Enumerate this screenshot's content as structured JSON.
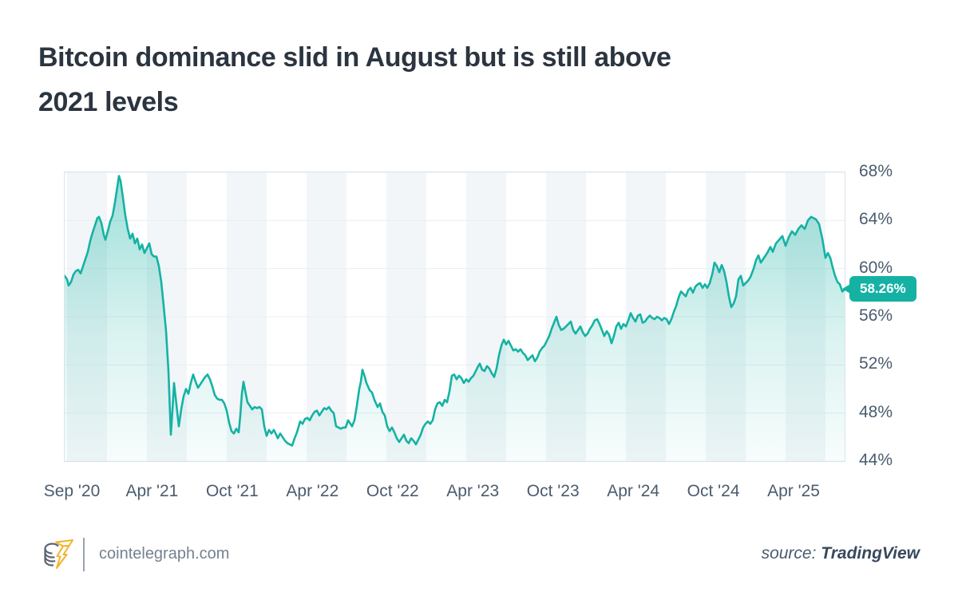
{
  "title": {
    "lines": [
      "Bitcoin dominance slid in August but is still above",
      "2021 levels"
    ]
  },
  "badge": {
    "text": "58.26%"
  },
  "footer": {
    "site": "cointelegraph.com",
    "source_prefix": "source:",
    "source_name": "TradingView",
    "logo_colors": {
      "coin": "#5b6470",
      "bolt": "#f3b229"
    }
  },
  "chart_data": {
    "type": "area",
    "title": "Bitcoin dominance slid in August but is still above 2021 levels",
    "unit": "%",
    "ylim": [
      44,
      68
    ],
    "y_ticks": [
      "68%",
      "64%",
      "60%",
      "56%",
      "52%",
      "48%",
      "44%"
    ],
    "x_ticks": [
      "Sep '20",
      "Apr '21",
      "Oct '21",
      "Apr '22",
      "Oct '22",
      "Apr '23",
      "Oct '23",
      "Apr '24",
      "Oct '24",
      "Apr '25"
    ],
    "x_range": [
      "Aug 2020",
      "Sep 2025"
    ],
    "grid": true,
    "legend": false,
    "last_value": 58.26,
    "last_value_label": "58.26%",
    "line_color": "#15b2a4",
    "fill_color": "#15b2a4",
    "stripe_color": "#f2f6f8",
    "grid_color": "#e8eef2",
    "border_color": "#d9e4ec",
    "points": [
      [
        0,
        59.4
      ],
      [
        3,
        59.1
      ],
      [
        5,
        58.6
      ],
      [
        8,
        58.9
      ],
      [
        11,
        59.5
      ],
      [
        14,
        59.8
      ],
      [
        17,
        59.9
      ],
      [
        20,
        59.6
      ],
      [
        23,
        60.2
      ],
      [
        26,
        60.8
      ],
      [
        29,
        61.4
      ],
      [
        32,
        62.3
      ],
      [
        35,
        63.0
      ],
      [
        38,
        63.6
      ],
      [
        41,
        64.2
      ],
      [
        43,
        64.3
      ],
      [
        46,
        63.8
      ],
      [
        49,
        62.8
      ],
      [
        51,
        62.4
      ],
      [
        54,
        63.1
      ],
      [
        57,
        63.9
      ],
      [
        60,
        64.4
      ],
      [
        63,
        65.5
      ],
      [
        66,
        66.8
      ],
      [
        68,
        67.7
      ],
      [
        70,
        67.3
      ],
      [
        73,
        65.9
      ],
      [
        76,
        64.4
      ],
      [
        79,
        63.3
      ],
      [
        82,
        62.5
      ],
      [
        85,
        62.9
      ],
      [
        88,
        62.1
      ],
      [
        91,
        62.5
      ],
      [
        94,
        61.6
      ],
      [
        97,
        62.0
      ],
      [
        100,
        61.3
      ],
      [
        103,
        61.7
      ],
      [
        106,
        62.1
      ],
      [
        109,
        61.2
      ],
      [
        112,
        61.0
      ],
      [
        115,
        61.0
      ],
      [
        118,
        60.2
      ],
      [
        121,
        58.9
      ],
      [
        124,
        56.9
      ],
      [
        127,
        54.8
      ],
      [
        130,
        51.5
      ],
      [
        133,
        46.2
      ],
      [
        135,
        48.2
      ],
      [
        137,
        50.5
      ],
      [
        140,
        48.7
      ],
      [
        143,
        46.9
      ],
      [
        146,
        48.3
      ],
      [
        149,
        49.4
      ],
      [
        152,
        50.0
      ],
      [
        155,
        49.6
      ],
      [
        158,
        50.5
      ],
      [
        161,
        51.2
      ],
      [
        164,
        50.6
      ],
      [
        167,
        50.1
      ],
      [
        170,
        50.4
      ],
      [
        173,
        50.7
      ],
      [
        176,
        51.0
      ],
      [
        179,
        51.2
      ],
      [
        182,
        50.8
      ],
      [
        185,
        50.2
      ],
      [
        188,
        49.5
      ],
      [
        191,
        49.2
      ],
      [
        194,
        49.1
      ],
      [
        197,
        49.1
      ],
      [
        200,
        48.8
      ],
      [
        203,
        48.2
      ],
      [
        206,
        47.2
      ],
      [
        209,
        46.5
      ],
      [
        212,
        46.3
      ],
      [
        215,
        46.7
      ],
      [
        218,
        46.4
      ],
      [
        220,
        47.8
      ],
      [
        222,
        49.6
      ],
      [
        224,
        50.6
      ],
      [
        226,
        49.9
      ],
      [
        229,
        48.9
      ],
      [
        232,
        48.6
      ],
      [
        235,
        48.3
      ],
      [
        238,
        48.5
      ],
      [
        241,
        48.4
      ],
      [
        244,
        48.5
      ],
      [
        247,
        48.3
      ],
      [
        250,
        46.9
      ],
      [
        253,
        46.1
      ],
      [
        256,
        46.6
      ],
      [
        259,
        46.3
      ],
      [
        262,
        46.6
      ],
      [
        265,
        46.2
      ],
      [
        267,
        45.9
      ],
      [
        270,
        46.3
      ],
      [
        273,
        46.0
      ],
      [
        276,
        45.7
      ],
      [
        279,
        45.5
      ],
      [
        282,
        45.4
      ],
      [
        285,
        45.3
      ],
      [
        288,
        45.9
      ],
      [
        291,
        46.4
      ],
      [
        295,
        47.3
      ],
      [
        298,
        47.1
      ],
      [
        301,
        47.5
      ],
      [
        304,
        47.6
      ],
      [
        307,
        47.4
      ],
      [
        310,
        47.8
      ],
      [
        313,
        48.1
      ],
      [
        316,
        48.2
      ],
      [
        319,
        47.8
      ],
      [
        322,
        48.1
      ],
      [
        325,
        48.4
      ],
      [
        328,
        48.3
      ],
      [
        331,
        48.5
      ],
      [
        334,
        48.2
      ],
      [
        337,
        48.0
      ],
      [
        340,
        46.9
      ],
      [
        343,
        46.8
      ],
      [
        346,
        46.7
      ],
      [
        349,
        46.8
      ],
      [
        352,
        46.8
      ],
      [
        355,
        47.4
      ],
      [
        358,
        47.1
      ],
      [
        360,
        46.9
      ],
      [
        363,
        47.4
      ],
      [
        366,
        48.6
      ],
      [
        369,
        50.0
      ],
      [
        371,
        50.6
      ],
      [
        373,
        51.6
      ],
      [
        376,
        51.0
      ],
      [
        378,
        50.5
      ],
      [
        382,
        49.9
      ],
      [
        385,
        49.7
      ],
      [
        388,
        49.1
      ],
      [
        392,
        48.5
      ],
      [
        395,
        48.8
      ],
      [
        398,
        48.1
      ],
      [
        401,
        47.8
      ],
      [
        404,
        46.9
      ],
      [
        407,
        46.5
      ],
      [
        410,
        46.8
      ],
      [
        413,
        46.4
      ],
      [
        416,
        45.9
      ],
      [
        419,
        45.6
      ],
      [
        422,
        45.9
      ],
      [
        425,
        46.2
      ],
      [
        428,
        45.7
      ],
      [
        431,
        45.5
      ],
      [
        434,
        45.9
      ],
      [
        437,
        45.7
      ],
      [
        440,
        45.4
      ],
      [
        443,
        45.8
      ],
      [
        446,
        46.2
      ],
      [
        449,
        46.8
      ],
      [
        452,
        47.1
      ],
      [
        455,
        47.3
      ],
      [
        458,
        47.1
      ],
      [
        461,
        47.4
      ],
      [
        464,
        48.3
      ],
      [
        467,
        48.8
      ],
      [
        470,
        48.9
      ],
      [
        473,
        48.6
      ],
      [
        476,
        49.1
      ],
      [
        479,
        48.9
      ],
      [
        482,
        49.8
      ],
      [
        485,
        51.1
      ],
      [
        488,
        51.2
      ],
      [
        491,
        50.8
      ],
      [
        494,
        51.1
      ],
      [
        497,
        50.9
      ],
      [
        500,
        50.5
      ],
      [
        503,
        50.8
      ],
      [
        506,
        50.6
      ],
      [
        509,
        50.9
      ],
      [
        512,
        51.1
      ],
      [
        515,
        51.5
      ],
      [
        518,
        51.9
      ],
      [
        520,
        52.1
      ],
      [
        523,
        51.6
      ],
      [
        526,
        51.5
      ],
      [
        529,
        51.9
      ],
      [
        532,
        51.7
      ],
      [
        535,
        51.3
      ],
      [
        538,
        51.0
      ],
      [
        541,
        51.7
      ],
      [
        544,
        52.8
      ],
      [
        547,
        53.6
      ],
      [
        550,
        54.1
      ],
      [
        553,
        53.7
      ],
      [
        556,
        54.0
      ],
      [
        559,
        53.6
      ],
      [
        562,
        53.2
      ],
      [
        565,
        53.3
      ],
      [
        568,
        53.1
      ],
      [
        571,
        53.3
      ],
      [
        574,
        53.0
      ],
      [
        577,
        52.8
      ],
      [
        580,
        52.4
      ],
      [
        583,
        52.6
      ],
      [
        586,
        52.8
      ],
      [
        589,
        52.3
      ],
      [
        592,
        52.6
      ],
      [
        595,
        53.1
      ],
      [
        598,
        53.4
      ],
      [
        601,
        53.6
      ],
      [
        604,
        54.0
      ],
      [
        607,
        54.4
      ],
      [
        610,
        55.0
      ],
      [
        613,
        55.5
      ],
      [
        616,
        56.0
      ],
      [
        619,
        55.3
      ],
      [
        622,
        54.9
      ],
      [
        625,
        55.0
      ],
      [
        628,
        55.2
      ],
      [
        631,
        55.4
      ],
      [
        634,
        55.6
      ],
      [
        637,
        54.9
      ],
      [
        640,
        54.6
      ],
      [
        643,
        54.9
      ],
      [
        646,
        55.2
      ],
      [
        649,
        54.7
      ],
      [
        652,
        54.4
      ],
      [
        655,
        54.6
      ],
      [
        658,
        55.0
      ],
      [
        661,
        55.3
      ],
      [
        664,
        55.7
      ],
      [
        667,
        55.8
      ],
      [
        670,
        55.4
      ],
      [
        673,
        54.9
      ],
      [
        676,
        54.4
      ],
      [
        679,
        54.8
      ],
      [
        682,
        54.5
      ],
      [
        685,
        53.8
      ],
      [
        688,
        54.4
      ],
      [
        691,
        55.2
      ],
      [
        694,
        55.5
      ],
      [
        697,
        55.0
      ],
      [
        700,
        55.4
      ],
      [
        703,
        55.2
      ],
      [
        706,
        55.7
      ],
      [
        709,
        56.3
      ],
      [
        712,
        55.9
      ],
      [
        715,
        55.6
      ],
      [
        718,
        56.1
      ],
      [
        721,
        56.2
      ],
      [
        724,
        55.5
      ],
      [
        727,
        55.6
      ],
      [
        730,
        55.9
      ],
      [
        733,
        56.1
      ],
      [
        736,
        55.9
      ],
      [
        739,
        55.8
      ],
      [
        742,
        56.0
      ],
      [
        745,
        55.9
      ],
      [
        748,
        55.7
      ],
      [
        751,
        55.9
      ],
      [
        754,
        55.8
      ],
      [
        757,
        55.4
      ],
      [
        760,
        55.8
      ],
      [
        763,
        56.4
      ],
      [
        766,
        56.9
      ],
      [
        769,
        57.6
      ],
      [
        772,
        58.1
      ],
      [
        775,
        57.9
      ],
      [
        778,
        57.7
      ],
      [
        781,
        58.2
      ],
      [
        784,
        58.4
      ],
      [
        787,
        58.0
      ],
      [
        790,
        58.5
      ],
      [
        793,
        58.7
      ],
      [
        796,
        58.8
      ],
      [
        799,
        58.4
      ],
      [
        802,
        58.7
      ],
      [
        805,
        58.4
      ],
      [
        808,
        58.8
      ],
      [
        811,
        59.5
      ],
      [
        814,
        60.5
      ],
      [
        817,
        60.2
      ],
      [
        820,
        59.7
      ],
      [
        823,
        60.3
      ],
      [
        826,
        59.8
      ],
      [
        829,
        58.9
      ],
      [
        832,
        57.7
      ],
      [
        835,
        56.8
      ],
      [
        838,
        57.1
      ],
      [
        841,
        57.7
      ],
      [
        844,
        59.1
      ],
      [
        847,
        59.4
      ],
      [
        850,
        58.6
      ],
      [
        853,
        58.8
      ],
      [
        856,
        59.0
      ],
      [
        859,
        59.3
      ],
      [
        863,
        60.0
      ],
      [
        866,
        60.7
      ],
      [
        869,
        61.1
      ],
      [
        872,
        60.5
      ],
      [
        876,
        60.9
      ],
      [
        880,
        61.3
      ],
      [
        884,
        61.8
      ],
      [
        887,
        61.4
      ],
      [
        891,
        62.1
      ],
      [
        895,
        62.4
      ],
      [
        899,
        62.7
      ],
      [
        903,
        61.9
      ],
      [
        907,
        62.6
      ],
      [
        911,
        63.1
      ],
      [
        915,
        62.8
      ],
      [
        919,
        63.3
      ],
      [
        923,
        63.6
      ],
      [
        927,
        63.3
      ],
      [
        931,
        64.0
      ],
      [
        935,
        64.3
      ],
      [
        938,
        64.2
      ],
      [
        941,
        64.1
      ],
      [
        945,
        63.7
      ],
      [
        949,
        62.5
      ],
      [
        953,
        60.9
      ],
      [
        956,
        61.3
      ],
      [
        959,
        60.9
      ],
      [
        962,
        60.1
      ],
      [
        965,
        59.4
      ],
      [
        968,
        58.9
      ],
      [
        971,
        58.7
      ],
      [
        974,
        58.1
      ],
      [
        977,
        58.26
      ]
    ]
  }
}
